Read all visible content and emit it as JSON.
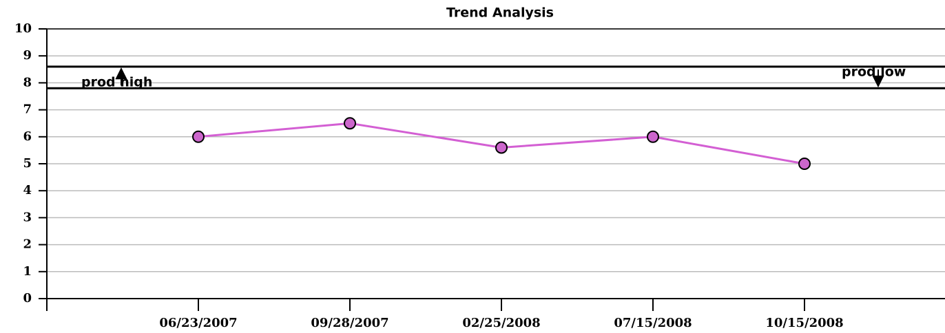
{
  "chart_data": {
    "type": "line",
    "title": "Trend Analysis",
    "categories": [
      "06/23/2007",
      "09/28/2007",
      "02/25/2008",
      "07/15/2008",
      "10/15/2008"
    ],
    "values": [
      6,
      6.5,
      5.6,
      6,
      5
    ],
    "color": "#d35fd3",
    "marker_color": "#cc66cc",
    "ylim": [
      0,
      10
    ],
    "yticks": [
      0,
      1,
      2,
      3,
      4,
      5,
      6,
      7,
      8,
      9,
      10
    ],
    "grid": true,
    "thresholds": [
      {
        "label": "prod high",
        "value": 7.8
      },
      {
        "label": "prod low",
        "value": 8.6
      }
    ]
  }
}
